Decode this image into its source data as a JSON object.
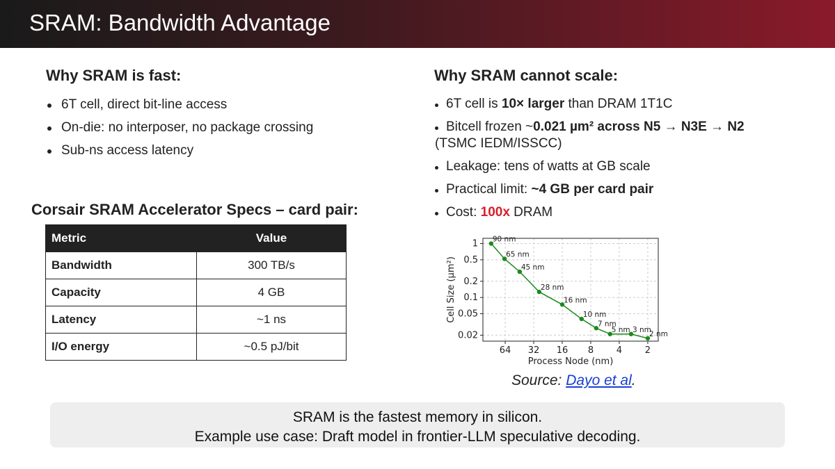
{
  "header": {
    "title": "SRAM: Bandwidth Advantage"
  },
  "left": {
    "heading": "Why SRAM is fast:",
    "bullets": [
      "6T cell, direct bit-line access",
      "On-die: no interposer, no package crossing",
      "Sub-ns access latency"
    ]
  },
  "specs": {
    "heading": "Corsair SRAM Accelerator Specs – card pair:",
    "columns": [
      "Metric",
      "Value"
    ],
    "rows": [
      {
        "metric": "Bandwidth",
        "value": "300 TB/s"
      },
      {
        "metric": "Capacity",
        "value": "4 GB"
      },
      {
        "metric": "Latency",
        "value": "~1 ns"
      },
      {
        "metric": "I/O energy",
        "value": "~0.5 pJ/bit"
      }
    ]
  },
  "right": {
    "heading": "Why SRAM cannot scale:",
    "b1": {
      "pre": "6T cell is ",
      "bold": "10× larger",
      "post": " than DRAM 1T1C"
    },
    "b2": {
      "pre": "Bitcell frozen ~",
      "bold": "0.021 µm² across N5 → N3E → N2",
      "post": "(TSMC IEDM/ISSCC)"
    },
    "b3": {
      "text": "Leakage: tens of watts at GB scale"
    },
    "b4": {
      "pre": "Practical limit: ",
      "bold": "~4 GB per card pair"
    },
    "b5": {
      "pre": "Cost: ",
      "red": "100x",
      "post": " DRAM"
    }
  },
  "chart_data": {
    "type": "line",
    "xlabel": "Process Node (nm)",
    "ylabel": "Cell Size (µm²)",
    "x_scale": "log-reversed",
    "y_scale": "log",
    "xticks": [
      "64",
      "32",
      "16",
      "8",
      "4",
      "2"
    ],
    "yticks": [
      "1",
      "0.5",
      "0.2",
      "0.1",
      "0.05",
      "0.02"
    ],
    "series": [
      {
        "color": "#1a8a1a",
        "x": [
          90,
          65,
          45,
          28,
          16,
          10,
          7,
          5,
          3,
          2
        ],
        "y": [
          1.0,
          0.52,
          0.3,
          0.127,
          0.074,
          0.04,
          0.027,
          0.021,
          0.021,
          0.0175
        ],
        "labels": [
          "90 nm",
          "65 nm",
          "45 nm",
          "28 nm",
          "16 nm",
          "10 nm",
          "7 nm",
          "5 nm",
          "3 nm",
          "2 nm"
        ]
      }
    ],
    "grid": true
  },
  "source": {
    "prefix": "Source: ",
    "link": "Dayo et al",
    "suffix": "."
  },
  "banner": {
    "line1": "SRAM is the fastest memory in silicon.",
    "line2": "Example use case: Draft model in frontier-LLM speculative decoding."
  }
}
